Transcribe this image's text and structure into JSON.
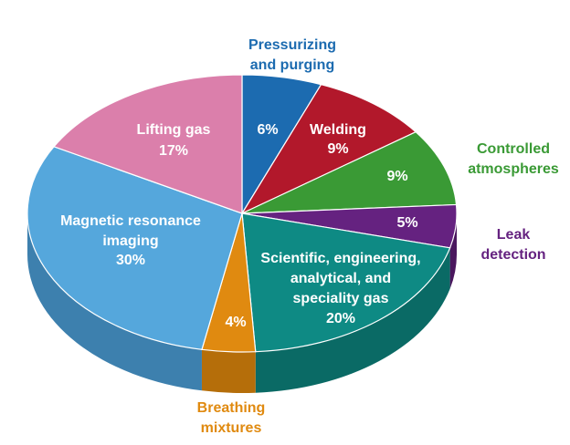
{
  "chart_data": {
    "type": "pie",
    "title": "",
    "series": [
      {
        "label_lines": [
          "Pressurizing",
          "and purging"
        ],
        "value_text": "6%",
        "value": 6,
        "color": "#1c6bb0",
        "side_color": "#13508a",
        "outside": true
      },
      {
        "label_lines": [
          "Welding"
        ],
        "value_text": "9%",
        "value": 9,
        "color": "#b2182b",
        "side_color": "#86111f",
        "outside": false
      },
      {
        "label_lines": [
          "Controlled",
          "atmospheres"
        ],
        "value_text": "9%",
        "value": 9,
        "color": "#3a9a35",
        "side_color": "#2a7426",
        "outside": true
      },
      {
        "label_lines": [
          "Leak",
          "detection"
        ],
        "value_text": "5%",
        "value": 5,
        "color": "#652280",
        "side_color": "#4a175e",
        "outside": true
      },
      {
        "label_lines": [
          "Scientific, engineering,",
          "analytical, and",
          "speciality gas"
        ],
        "value_text": "20%",
        "value": 20,
        "color": "#0e8a84",
        "side_color": "#0a6a65",
        "outside": false
      },
      {
        "label_lines": [
          "Breathing",
          "mixtures"
        ],
        "value_text": "4%",
        "value": 4,
        "color": "#e08a10",
        "side_color": "#b56e0a",
        "outside": true
      },
      {
        "label_lines": [
          "Magnetic resonance",
          "imaging"
        ],
        "value_text": "30%",
        "value": 30,
        "color": "#55a7dc",
        "side_color": "#3d80ae",
        "outside": false
      },
      {
        "label_lines": [
          "Lifting gas"
        ],
        "value_text": "17%",
        "value": 17,
        "color": "#db7fab",
        "side_color": "#ad5f85",
        "outside": false
      }
    ]
  }
}
